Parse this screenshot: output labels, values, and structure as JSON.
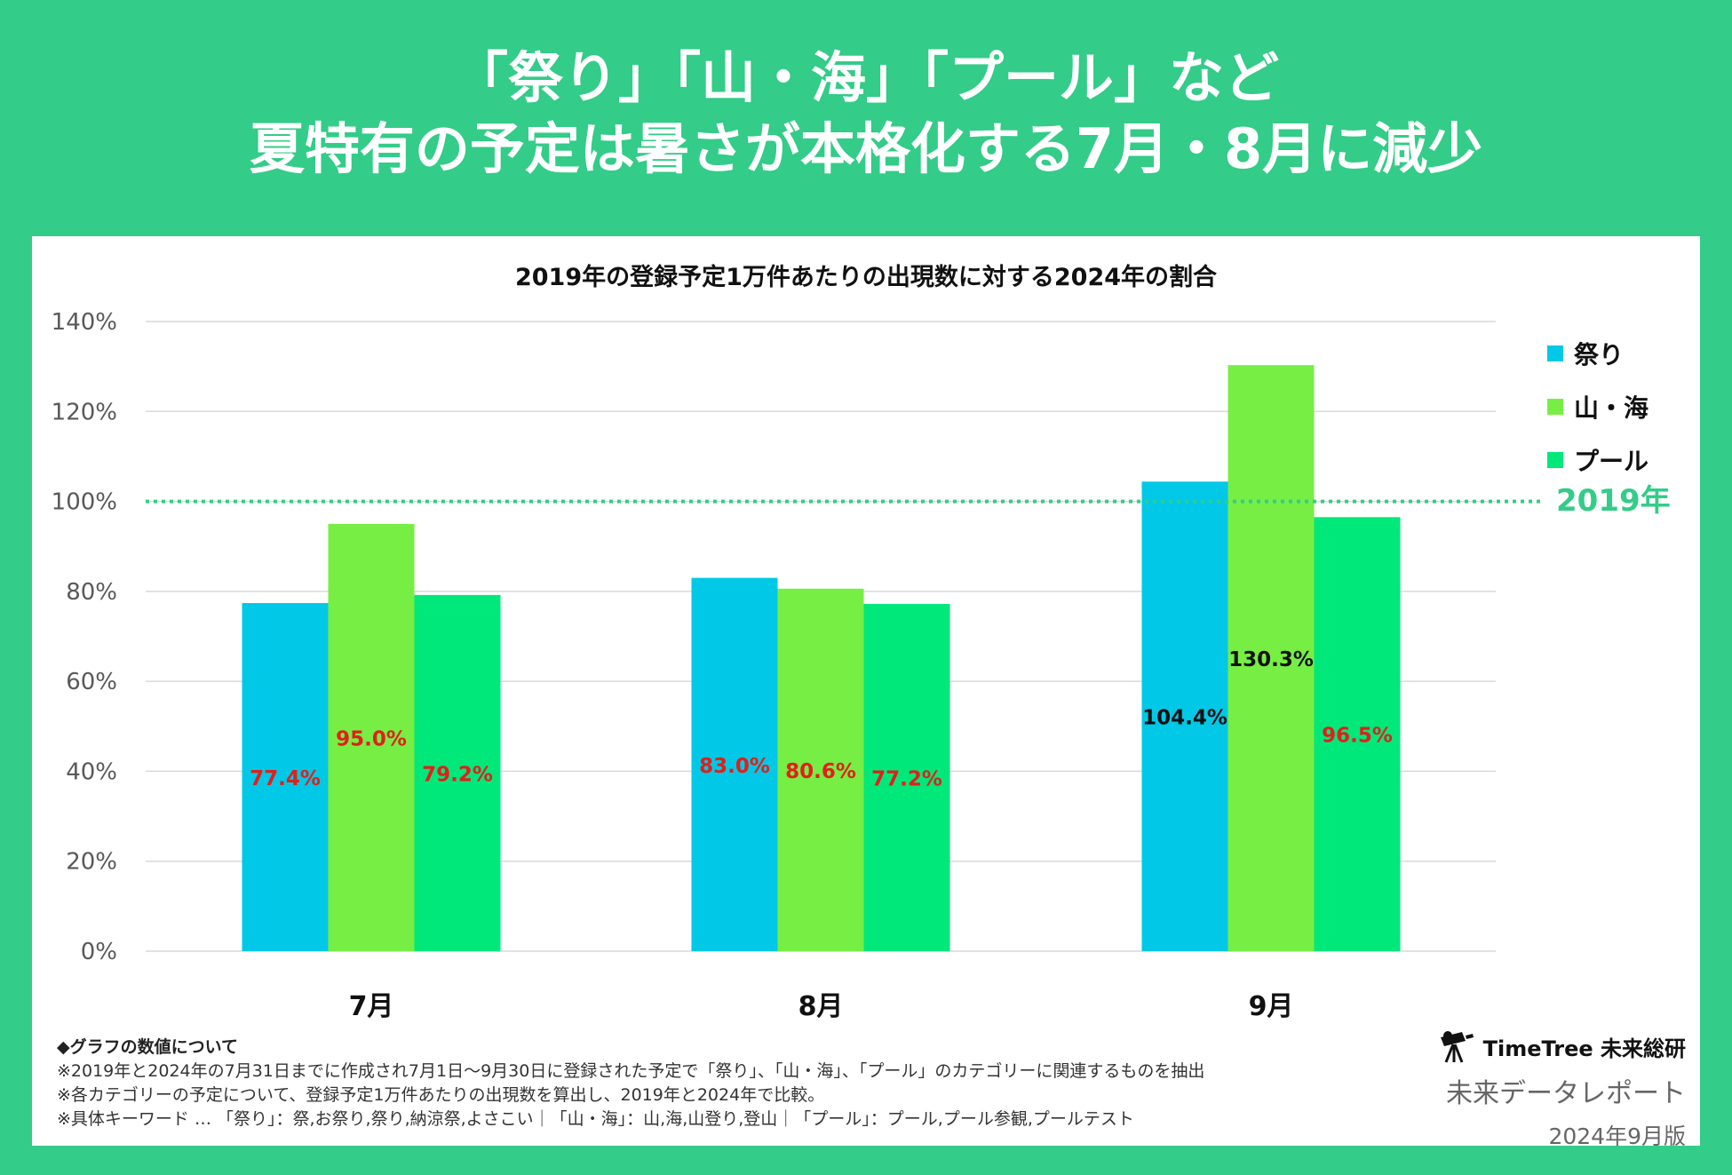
{
  "headline": {
    "line1": "「祭り」「山・海」「プール」など",
    "line2": "夏特有の予定は暑さが本格化する7月・8月に減少"
  },
  "colors": {
    "background": "#33cc88",
    "matsuri": "#00c8e6",
    "yama_umi": "#77ee44",
    "pool": "#00e87a",
    "reference_line": "#33cc88",
    "label_below": "#e0201a",
    "label_above": "#111111"
  },
  "chart_data": {
    "type": "bar",
    "title": "2019年の登録予定1万件あたりの出現数に対する2024年の割合",
    "categories": [
      "7月",
      "8月",
      "9月"
    ],
    "series": [
      {
        "name": "祭り",
        "values": [
          77.4,
          83.0,
          104.4
        ],
        "labels": [
          "77.4%",
          "83.0%",
          "104.4%"
        ]
      },
      {
        "name": "山・海",
        "values": [
          95.0,
          80.6,
          130.3
        ],
        "labels": [
          "95.0%",
          "80.6%",
          "130.3%"
        ]
      },
      {
        "name": "プール",
        "values": [
          79.2,
          77.2,
          96.5
        ],
        "labels": [
          "79.2%",
          "77.2%",
          "96.5%"
        ]
      }
    ],
    "ylim": [
      0,
      140
    ],
    "yticks": [
      0,
      20,
      40,
      60,
      80,
      100,
      120,
      140
    ],
    "ytick_labels": [
      "0%",
      "20%",
      "40%",
      "60%",
      "80%",
      "100%",
      "120%",
      "140%"
    ],
    "reference_line": {
      "value": 100,
      "label": "2019年",
      "style": "dotted"
    },
    "legend_position": "right",
    "grid": true
  },
  "notes": {
    "heading": "◆グラフの数値について",
    "lines": [
      "※2019年と2024年の7月31日までに作成され7月1日〜9月30日に登録された予定で「祭り」、「山・海」、「プール」のカテゴリーに関連するものを抽出",
      "※各カテゴリーの予定について、登録予定1万件あたりの出現数を算出し、2019年と2024年で比較。",
      "※具体キーワード … 「祭り」：祭,お祭り,祭り,納涼祭,よさこい｜「山・海」：山,海,山登り,登山｜「プール」：プール,プール参観,プールテスト"
    ]
  },
  "brand": {
    "logo_text": "TimeTree 未来総研",
    "logo_icon": "telescope-icon",
    "report": "未来データレポート",
    "date": "2024年9月版"
  }
}
